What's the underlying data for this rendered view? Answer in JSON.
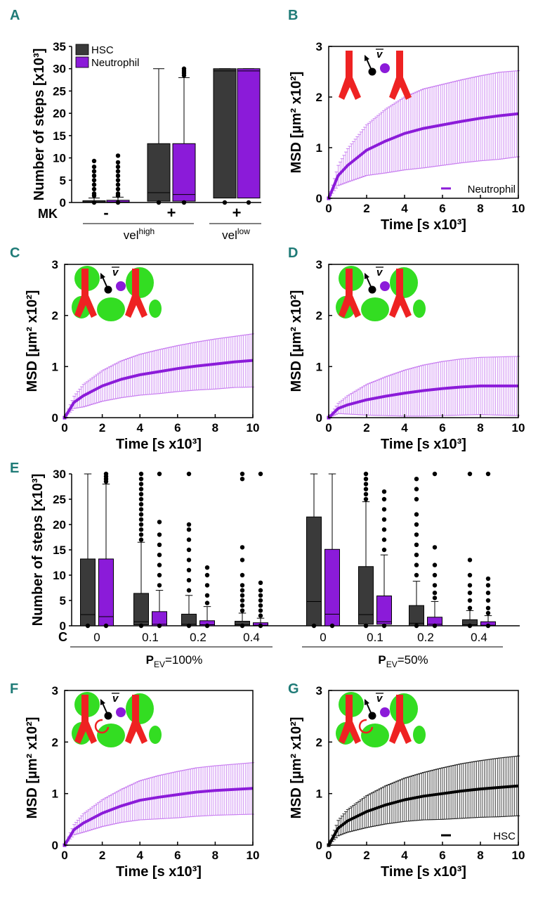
{
  "colors": {
    "hsc": "#3a3a3a",
    "neutrophil": "#8b1bd9",
    "neutrophil_err": "#c87ef0",
    "panel_label": "#1f7b77",
    "vessel": "#ee2222",
    "cell_green": "#33dd22"
  },
  "chart_data": [
    {
      "panel": "A",
      "type": "box",
      "ylabel": "Number of steps [x10³]",
      "ylim": [
        0,
        35
      ],
      "yticks": [
        "0",
        "5",
        "10",
        "15",
        "20",
        "25",
        "30",
        "35"
      ],
      "legend": [
        {
          "name": "HSC",
          "color": "#3a3a3a"
        },
        {
          "name": "Neutrophil",
          "color": "#8b1bd9"
        }
      ],
      "row_label": "MK",
      "groups": [
        {
          "mk": "-",
          "boxes": [
            {
              "series": "HSC",
              "q1": 0,
              "median": 0.1,
              "q3": 0.4,
              "whisker_low": 0,
              "whisker_high": 1,
              "outliers": [
                1.5,
                2,
                3,
                4,
                5,
                6,
                7,
                8,
                9.3
              ]
            },
            {
              "series": "Neutrophil",
              "q1": 0,
              "median": 0.1,
              "q3": 0.5,
              "whisker_low": 0,
              "whisker_high": 1.2,
              "outliers": [
                1.5,
                2,
                3,
                4,
                5,
                6,
                7,
                8,
                9,
                10.5
              ]
            }
          ]
        },
        {
          "mk": "+",
          "boxes": [
            {
              "series": "HSC",
              "q1": 0.3,
              "median": 2.2,
              "q3": 13.2,
              "whisker_low": 0,
              "whisker_high": 30,
              "outliers": []
            },
            {
              "series": "Neutrophil",
              "q1": 0.3,
              "median": 1.8,
              "q3": 13.2,
              "whisker_low": 0,
              "whisker_high": 28,
              "outliers": [
                28.5,
                29,
                29.5,
                30
              ]
            }
          ]
        },
        {
          "mk": "+",
          "boxes": [
            {
              "series": "HSC",
              "q1": 1,
              "median": 29.5,
              "q3": 30,
              "whisker_low": 0,
              "whisker_high": 30,
              "outliers": []
            },
            {
              "series": "Neutrophil",
              "q1": 1,
              "median": 29.5,
              "q3": 30,
              "whisker_low": 0,
              "whisker_high": 30,
              "outliers": []
            }
          ]
        }
      ],
      "bracket_labels": [
        {
          "text": "vel",
          "sup": "high"
        },
        {
          "text": "vel",
          "sup": "low"
        }
      ]
    },
    {
      "panel": "B",
      "type": "line",
      "series_name": "Neutrophil",
      "legend_shown": true,
      "xlabel": "Time [s x10³]",
      "ylabel": "MSD [µm² x10²]",
      "xlim": [
        0,
        10
      ],
      "ylim": [
        0,
        3
      ],
      "xticks": [
        "0",
        "2",
        "4",
        "6",
        "8",
        "10"
      ],
      "yticks": [
        "0",
        "1",
        "2",
        "3"
      ],
      "x": [
        0,
        0.5,
        1,
        2,
        3,
        4,
        5,
        6,
        7,
        8,
        9,
        10
      ],
      "mean": [
        0,
        0.45,
        0.65,
        0.95,
        1.13,
        1.28,
        1.38,
        1.45,
        1.52,
        1.58,
        1.63,
        1.67
      ],
      "sd": [
        0,
        0.2,
        0.33,
        0.5,
        0.63,
        0.72,
        0.78,
        0.8,
        0.82,
        0.84,
        0.86,
        0.85
      ]
    },
    {
      "panel": "C",
      "type": "line",
      "series_name": "Neutrophil",
      "legend_shown": false,
      "xlabel": "Time [s x10³]",
      "ylabel": "MSD [µm² x10²]",
      "xlim": [
        0,
        10
      ],
      "ylim": [
        0,
        3
      ],
      "xticks": [
        "0",
        "2",
        "4",
        "6",
        "8",
        "10"
      ],
      "yticks": [
        "0",
        "1",
        "2",
        "3"
      ],
      "x": [
        0,
        0.5,
        1,
        2,
        3,
        4,
        5,
        6,
        7,
        8,
        9,
        10
      ],
      "mean": [
        0,
        0.3,
        0.43,
        0.62,
        0.75,
        0.84,
        0.9,
        0.96,
        1.01,
        1.05,
        1.09,
        1.12
      ],
      "sd": [
        0,
        0.12,
        0.22,
        0.3,
        0.36,
        0.4,
        0.43,
        0.45,
        0.47,
        0.49,
        0.5,
        0.52
      ]
    },
    {
      "panel": "D",
      "type": "line",
      "series_name": "Neutrophil",
      "legend_shown": false,
      "xlabel": "Time [s x10³]",
      "ylabel": "MSD [µm² x10²]",
      "xlim": [
        0,
        10
      ],
      "ylim": [
        0,
        3
      ],
      "xticks": [
        "0",
        "2",
        "4",
        "6",
        "8",
        "10"
      ],
      "yticks": [
        "0",
        "1",
        "2",
        "3"
      ],
      "x": [
        0,
        0.5,
        1,
        2,
        3,
        4,
        5,
        6,
        7,
        8,
        9,
        10
      ],
      "mean": [
        0,
        0.18,
        0.25,
        0.35,
        0.42,
        0.48,
        0.53,
        0.57,
        0.6,
        0.62,
        0.62,
        0.62
      ],
      "sd": [
        0,
        0.1,
        0.18,
        0.3,
        0.38,
        0.45,
        0.5,
        0.53,
        0.55,
        0.56,
        0.57,
        0.58
      ]
    },
    {
      "panel": "E",
      "type": "box",
      "ylabel": "Number of steps [x10³]",
      "ylim": [
        0,
        30
      ],
      "yticks": [
        "0",
        "5",
        "10",
        "15",
        "20",
        "25",
        "30"
      ],
      "row_label": "C",
      "groups": [
        {
          "pev": "Pₑᵥ=100%",
          "pev_main": "P",
          "pev_sub": "EV",
          "pev_value": "=100%",
          "c": "0",
          "boxes": [
            {
              "series": "HSC",
              "q1": 0,
              "median": 2.2,
              "q3": 13.2,
              "whisker_low": 0,
              "whisker_high": 30,
              "outliers": []
            },
            {
              "series": "Neutrophil",
              "q1": 0,
              "median": 1.8,
              "q3": 13.2,
              "whisker_low": 0,
              "whisker_high": 28,
              "outliers": [
                28.5,
                29,
                29.5,
                30
              ]
            }
          ]
        },
        {
          "pev_main": "P",
          "pev_sub": "EV",
          "pev_value": "=100%",
          "c": "0.1",
          "boxes": [
            {
              "series": "HSC",
              "q1": 0.2,
              "median": 0.8,
              "q3": 6.4,
              "whisker_low": 0,
              "whisker_high": 16.5,
              "outliers": [
                17,
                18,
                19,
                20,
                21,
                22,
                23,
                24,
                25,
                26,
                27,
                28,
                29,
                30
              ]
            },
            {
              "series": "Neutrophil",
              "q1": 0,
              "median": 0.3,
              "q3": 2.8,
              "whisker_low": 0,
              "whisker_high": 7,
              "outliers": [
                8,
                10,
                12,
                14,
                16,
                18,
                20.5,
                30
              ]
            }
          ]
        },
        {
          "pev_main": "P",
          "pev_sub": "EV",
          "pev_value": "=100%",
          "c": "0.2",
          "boxes": [
            {
              "series": "HSC",
              "q1": 0,
              "median": 0.3,
              "q3": 2.3,
              "whisker_low": 0,
              "whisker_high": 6,
              "outliers": [
                7,
                9,
                11,
                13,
                15,
                17,
                19,
                20,
                30
              ]
            },
            {
              "series": "Neutrophil",
              "q1": 0,
              "median": 0.2,
              "q3": 1,
              "whisker_low": 0,
              "whisker_high": 3.8,
              "outliers": [
                4.5,
                6,
                8,
                10,
                11.5
              ]
            }
          ]
        },
        {
          "pev_main": "P",
          "pev_sub": "EV",
          "pev_value": "=100%",
          "c": "0.4",
          "boxes": [
            {
              "series": "HSC",
              "q1": 0,
              "median": 0.2,
              "q3": 0.9,
              "whisker_low": 0,
              "whisker_high": 2.5,
              "outliers": [
                3,
                4,
                5,
                6,
                7,
                8,
                10,
                13,
                15.5,
                29,
                30
              ]
            },
            {
              "series": "Neutrophil",
              "q1": 0,
              "median": 0.1,
              "q3": 0.6,
              "whisker_low": 0,
              "whisker_high": 1.5,
              "outliers": [
                2,
                3,
                4,
                5,
                6,
                7,
                8.5,
                30
              ]
            }
          ]
        },
        {
          "pev_main": "P",
          "pev_sub": "EV",
          "pev_value": "=50%",
          "c": "0",
          "boxes": [
            {
              "series": "HSC",
              "q1": 0,
              "median": 4.8,
              "q3": 21.5,
              "whisker_low": 0,
              "whisker_high": 30,
              "outliers": []
            },
            {
              "series": "Neutrophil",
              "q1": 0,
              "median": 2.3,
              "q3": 15.1,
              "whisker_low": 0,
              "whisker_high": 30,
              "outliers": []
            }
          ]
        },
        {
          "pev_main": "P",
          "pev_sub": "EV",
          "pev_value": "=50%",
          "c": "0.1",
          "boxes": [
            {
              "series": "HSC",
              "q1": 0.3,
              "median": 2.2,
              "q3": 11.7,
              "whisker_low": 0,
              "whisker_high": 24.5,
              "outliers": [
                25,
                26,
                27,
                28,
                29,
                30
              ]
            },
            {
              "series": "Neutrophil",
              "q1": 0.3,
              "median": 0.8,
              "q3": 5.9,
              "whisker_low": 0,
              "whisker_high": 14,
              "outliers": [
                15,
                17,
                19,
                21,
                23,
                25,
                26.5
              ]
            }
          ]
        },
        {
          "pev_main": "P",
          "pev_sub": "EV",
          "pev_value": "=50%",
          "c": "0.2",
          "boxes": [
            {
              "series": "HSC",
              "q1": 0,
              "median": 0.5,
              "q3": 4,
              "whisker_low": 0,
              "whisker_high": 8.8,
              "outliers": [
                10,
                12,
                14,
                16,
                18,
                20,
                22,
                25,
                27,
                29
              ]
            },
            {
              "series": "Neutrophil",
              "q1": 0,
              "median": 0.3,
              "q3": 1.7,
              "whisker_low": 0,
              "whisker_high": 4.8,
              "outliers": [
                5.5,
                6.5,
                8,
                10,
                12,
                15.5,
                30
              ]
            }
          ]
        },
        {
          "pev_main": "P",
          "pev_sub": "EV",
          "pev_value": "=50%",
          "c": "0.4",
          "boxes": [
            {
              "series": "HSC",
              "q1": 0,
              "median": 0.2,
              "q3": 1.2,
              "whisker_low": 0,
              "whisker_high": 3,
              "outliers": [
                3.5,
                5,
                6.5,
                8,
                10,
                13,
                30
              ]
            },
            {
              "series": "Neutrophil",
              "q1": 0,
              "median": 0.1,
              "q3": 0.8,
              "whisker_low": 0,
              "whisker_high": 2,
              "outliers": [
                2.5,
                3.5,
                5,
                6.5,
                8,
                9.3,
                30
              ]
            }
          ]
        }
      ],
      "pev_labels": [
        {
          "main": "P",
          "sub": "EV",
          "value": "=100%"
        },
        {
          "main": "P",
          "sub": "EV",
          "value": "=50%"
        }
      ]
    },
    {
      "panel": "F",
      "type": "line",
      "series_name": "Neutrophil",
      "legend_shown": false,
      "xlabel": "Time [s x10³]",
      "ylabel": "MSD [µm² x10²]",
      "xlim": [
        0,
        10
      ],
      "ylim": [
        0,
        3
      ],
      "xticks": [
        "0",
        "2",
        "4",
        "6",
        "8",
        "10"
      ],
      "yticks": [
        "0",
        "1",
        "2",
        "3"
      ],
      "x": [
        0,
        0.5,
        1,
        2,
        3,
        4,
        5,
        6,
        7,
        8,
        9,
        10
      ],
      "mean": [
        0,
        0.3,
        0.43,
        0.62,
        0.76,
        0.87,
        0.93,
        0.98,
        1.03,
        1.06,
        1.08,
        1.1
      ],
      "sd": [
        0,
        0.1,
        0.18,
        0.26,
        0.32,
        0.38,
        0.42,
        0.45,
        0.47,
        0.48,
        0.49,
        0.5
      ]
    },
    {
      "panel": "G",
      "type": "line",
      "series_name": "HSC",
      "legend_shown": true,
      "xlabel": "Time [s x10³]",
      "ylabel": "MSD [µm² x10²]",
      "xlim": [
        0,
        10
      ],
      "ylim": [
        0,
        3
      ],
      "xticks": [
        "0",
        "2",
        "4",
        "6",
        "8",
        "10"
      ],
      "yticks": [
        "0",
        "1",
        "2",
        "3"
      ],
      "x": [
        0,
        0.5,
        1,
        2,
        3,
        4,
        5,
        6,
        7,
        8,
        9,
        10
      ],
      "mean": [
        0,
        0.33,
        0.47,
        0.65,
        0.78,
        0.88,
        0.95,
        1.0,
        1.05,
        1.09,
        1.12,
        1.15
      ],
      "sd": [
        0,
        0.15,
        0.22,
        0.31,
        0.37,
        0.42,
        0.46,
        0.5,
        0.53,
        0.55,
        0.57,
        0.58
      ]
    }
  ]
}
